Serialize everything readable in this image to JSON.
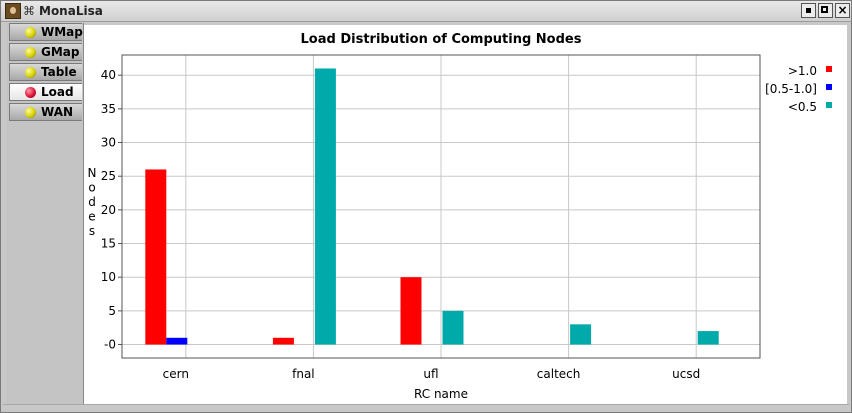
{
  "window": {
    "title": "MonaLisa",
    "close_glyph": "×"
  },
  "sidebar": {
    "items": [
      {
        "label": "WMap",
        "icon": "yellow-ball-icon",
        "active": false
      },
      {
        "label": "GMap",
        "icon": "yellow-ball-icon",
        "active": false
      },
      {
        "label": "Table",
        "icon": "yellow-ball-icon",
        "active": false
      },
      {
        "label": "Load",
        "icon": "red-ball-icon",
        "active": true
      },
      {
        "label": "WAN",
        "icon": "yellow-ball-icon",
        "active": false
      }
    ]
  },
  "chart_data": {
    "type": "bar",
    "title": "Load Distribution of Computing Nodes",
    "xlabel": "RC name",
    "ylabel": "Nodes",
    "categories": [
      "cern",
      "fnal",
      "ufl",
      "caltech",
      "ucsd"
    ],
    "series": [
      {
        "name": ">1.0",
        "color": "#ff0000",
        "values": [
          26,
          1,
          10,
          0,
          0
        ]
      },
      {
        "name": "[0.5-1.0]",
        "color": "#0000ff",
        "values": [
          1,
          0,
          0,
          0,
          0
        ]
      },
      {
        "name": "<0.5",
        "color": "#00aaaa",
        "values": [
          0,
          41,
          5,
          3,
          2
        ]
      }
    ],
    "yticks": [
      0,
      5,
      10,
      15,
      20,
      25,
      30,
      35,
      40
    ],
    "ytick_labels": [
      "-0",
      "5",
      "10",
      "15",
      "20",
      "25",
      "30",
      "35",
      "40"
    ],
    "ylim": [
      -2,
      43
    ],
    "grid": true,
    "legend_position": "top-right"
  }
}
